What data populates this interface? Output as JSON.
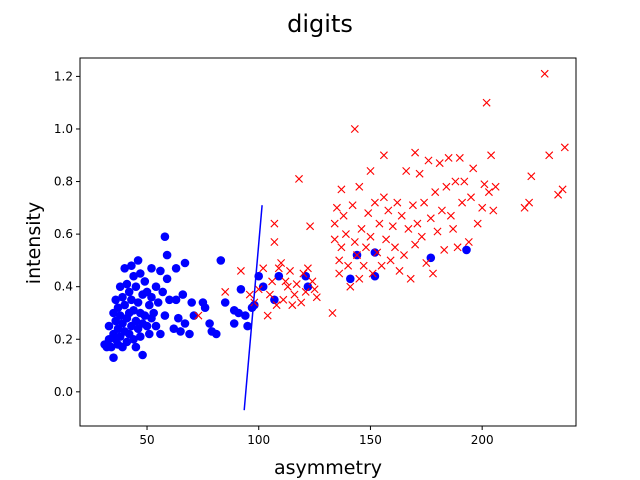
{
  "chart_data": {
    "type": "scatter",
    "title": "digits",
    "xlabel": "asymmetry",
    "ylabel": "intensity",
    "xlim": [
      20,
      242
    ],
    "ylim": [
      -0.13,
      1.27
    ],
    "xticks": [
      50,
      100,
      150,
      200
    ],
    "xtick_labels": [
      "50",
      "100",
      "150",
      "200"
    ],
    "yticks": [
      0.0,
      0.2,
      0.4,
      0.6,
      0.8,
      1.0,
      1.2
    ],
    "ytick_labels": [
      "0.0",
      "0.2",
      "0.4",
      "0.6",
      "0.8",
      "1.0",
      "1.2"
    ],
    "grid": false,
    "series": [
      {
        "marker": "circle",
        "color": "#0000ff",
        "points": [
          [
            31,
            0.18
          ],
          [
            32,
            0.17
          ],
          [
            33,
            0.2
          ],
          [
            33,
            0.25
          ],
          [
            34,
            0.17
          ],
          [
            35,
            0.3
          ],
          [
            35,
            0.22
          ],
          [
            35,
            0.13
          ],
          [
            36,
            0.35
          ],
          [
            36,
            0.27
          ],
          [
            36,
            0.2
          ],
          [
            37,
            0.32
          ],
          [
            37,
            0.24
          ],
          [
            37,
            0.18
          ],
          [
            38,
            0.4
          ],
          [
            38,
            0.29
          ],
          [
            38,
            0.21
          ],
          [
            39,
            0.36
          ],
          [
            39,
            0.26
          ],
          [
            39,
            0.17
          ],
          [
            40,
            0.47
          ],
          [
            40,
            0.33
          ],
          [
            40,
            0.23
          ],
          [
            41,
            0.41
          ],
          [
            41,
            0.28
          ],
          [
            41,
            0.19
          ],
          [
            42,
            0.38
          ],
          [
            42,
            0.3
          ],
          [
            42,
            0.22
          ],
          [
            43,
            0.48
          ],
          [
            43,
            0.35
          ],
          [
            43,
            0.25
          ],
          [
            44,
            0.44
          ],
          [
            44,
            0.31
          ],
          [
            44,
            0.2
          ],
          [
            45,
            0.4
          ],
          [
            45,
            0.27
          ],
          [
            45,
            0.17
          ],
          [
            46,
            0.5
          ],
          [
            46,
            0.34
          ],
          [
            46,
            0.24
          ],
          [
            47,
            0.45
          ],
          [
            47,
            0.3
          ],
          [
            47,
            0.21
          ],
          [
            48,
            0.37
          ],
          [
            48,
            0.26
          ],
          [
            48,
            0.14
          ],
          [
            49,
            0.42
          ],
          [
            49,
            0.29
          ],
          [
            50,
            0.38
          ],
          [
            50,
            0.25
          ],
          [
            51,
            0.33
          ],
          [
            51,
            0.22
          ],
          [
            52,
            0.47
          ],
          [
            52,
            0.36
          ],
          [
            52,
            0.28
          ],
          [
            53,
            0.3
          ],
          [
            54,
            0.4
          ],
          [
            54,
            0.25
          ],
          [
            55,
            0.34
          ],
          [
            56,
            0.46
          ],
          [
            56,
            0.22
          ],
          [
            57,
            0.38
          ],
          [
            58,
            0.59
          ],
          [
            58,
            0.29
          ],
          [
            59,
            0.52
          ],
          [
            59,
            0.43
          ],
          [
            60,
            0.35
          ],
          [
            62,
            0.24
          ],
          [
            63,
            0.35
          ],
          [
            63,
            0.47
          ],
          [
            64,
            0.28
          ],
          [
            65,
            0.23
          ],
          [
            66,
            0.37
          ],
          [
            67,
            0.26
          ],
          [
            67,
            0.49
          ],
          [
            69,
            0.22
          ],
          [
            70,
            0.34
          ],
          [
            71,
            0.29
          ],
          [
            75,
            0.34
          ],
          [
            76,
            0.32
          ],
          [
            78,
            0.26
          ],
          [
            79,
            0.23
          ],
          [
            81,
            0.22
          ],
          [
            83,
            0.5
          ],
          [
            85,
            0.34
          ],
          [
            89,
            0.31
          ],
          [
            89,
            0.26
          ],
          [
            91,
            0.3
          ],
          [
            92,
            0.39
          ],
          [
            94,
            0.29
          ],
          [
            95,
            0.25
          ],
          [
            97,
            0.32
          ],
          [
            98,
            0.33
          ],
          [
            100,
            0.44
          ],
          [
            102,
            0.4
          ],
          [
            107,
            0.35
          ],
          [
            109,
            0.44
          ],
          [
            121,
            0.44
          ],
          [
            122,
            0.4
          ],
          [
            141,
            0.43
          ],
          [
            144,
            0.52
          ],
          [
            152,
            0.53
          ],
          [
            152,
            0.44
          ],
          [
            177,
            0.51
          ],
          [
            193,
            0.54
          ]
        ]
      },
      {
        "marker": "x",
        "color": "#ff0000",
        "points": [
          [
            73,
            0.29
          ],
          [
            85,
            0.38
          ],
          [
            92,
            0.46
          ],
          [
            96,
            0.37
          ],
          [
            98,
            0.34
          ],
          [
            100,
            0.39
          ],
          [
            102,
            0.47
          ],
          [
            104,
            0.29
          ],
          [
            105,
            0.37
          ],
          [
            106,
            0.42
          ],
          [
            107,
            0.64
          ],
          [
            107,
            0.57
          ],
          [
            108,
            0.33
          ],
          [
            109,
            0.47
          ],
          [
            110,
            0.49
          ],
          [
            111,
            0.35
          ],
          [
            112,
            0.42
          ],
          [
            113,
            0.4
          ],
          [
            114,
            0.46
          ],
          [
            115,
            0.33
          ],
          [
            116,
            0.37
          ],
          [
            117,
            0.41
          ],
          [
            118,
            0.81
          ],
          [
            119,
            0.34
          ],
          [
            120,
            0.45
          ],
          [
            121,
            0.38
          ],
          [
            122,
            0.47
          ],
          [
            123,
            0.63
          ],
          [
            124,
            0.42
          ],
          [
            125,
            0.39
          ],
          [
            126,
            0.36
          ],
          [
            133,
            0.3
          ],
          [
            134,
            0.64
          ],
          [
            134,
            0.58
          ],
          [
            135,
            0.7
          ],
          [
            136,
            0.5
          ],
          [
            136,
            0.45
          ],
          [
            137,
            0.77
          ],
          [
            137,
            0.55
          ],
          [
            138,
            0.67
          ],
          [
            139,
            0.6
          ],
          [
            140,
            0.48
          ],
          [
            141,
            0.4
          ],
          [
            142,
            0.71
          ],
          [
            143,
            0.57
          ],
          [
            143,
            1.0
          ],
          [
            144,
            0.52
          ],
          [
            145,
            0.43
          ],
          [
            145,
            0.78
          ],
          [
            146,
            0.62
          ],
          [
            147,
            0.48
          ],
          [
            148,
            0.55
          ],
          [
            149,
            0.68
          ],
          [
            150,
            0.84
          ],
          [
            150,
            0.59
          ],
          [
            151,
            0.45
          ],
          [
            152,
            0.72
          ],
          [
            153,
            0.53
          ],
          [
            154,
            0.64
          ],
          [
            155,
            0.48
          ],
          [
            156,
            0.9
          ],
          [
            156,
            0.74
          ],
          [
            157,
            0.58
          ],
          [
            158,
            0.69
          ],
          [
            159,
            0.5
          ],
          [
            160,
            0.63
          ],
          [
            161,
            0.55
          ],
          [
            162,
            0.72
          ],
          [
            163,
            0.46
          ],
          [
            164,
            0.67
          ],
          [
            165,
            0.52
          ],
          [
            166,
            0.84
          ],
          [
            167,
            0.62
          ],
          [
            168,
            0.43
          ],
          [
            169,
            0.71
          ],
          [
            170,
            0.91
          ],
          [
            170,
            0.56
          ],
          [
            171,
            0.64
          ],
          [
            172,
            0.83
          ],
          [
            173,
            0.59
          ],
          [
            174,
            0.72
          ],
          [
            175,
            0.49
          ],
          [
            176,
            0.88
          ],
          [
            177,
            0.66
          ],
          [
            178,
            0.45
          ],
          [
            179,
            0.76
          ],
          [
            180,
            0.61
          ],
          [
            181,
            0.87
          ],
          [
            182,
            0.69
          ],
          [
            183,
            0.54
          ],
          [
            184,
            0.78
          ],
          [
            185,
            0.89
          ],
          [
            186,
            0.67
          ],
          [
            187,
            0.62
          ],
          [
            188,
            0.8
          ],
          [
            189,
            0.55
          ],
          [
            190,
            0.89
          ],
          [
            191,
            0.72
          ],
          [
            192,
            0.8
          ],
          [
            194,
            0.57
          ],
          [
            195,
            0.74
          ],
          [
            196,
            0.85
          ],
          [
            198,
            0.64
          ],
          [
            200,
            0.7
          ],
          [
            201,
            0.79
          ],
          [
            202,
            1.1
          ],
          [
            203,
            0.76
          ],
          [
            204,
            0.9
          ],
          [
            205,
            0.69
          ],
          [
            206,
            0.78
          ],
          [
            219,
            0.7
          ],
          [
            221,
            0.72
          ],
          [
            222,
            0.82
          ],
          [
            228,
            1.21
          ],
          [
            230,
            0.9
          ],
          [
            234,
            0.75
          ],
          [
            236,
            0.77
          ],
          [
            237,
            0.93
          ]
        ]
      },
      {
        "marker": "line",
        "color": "#0000ff",
        "points": [
          [
            93.5,
            -0.07
          ],
          [
            101.5,
            0.71
          ]
        ]
      }
    ]
  }
}
